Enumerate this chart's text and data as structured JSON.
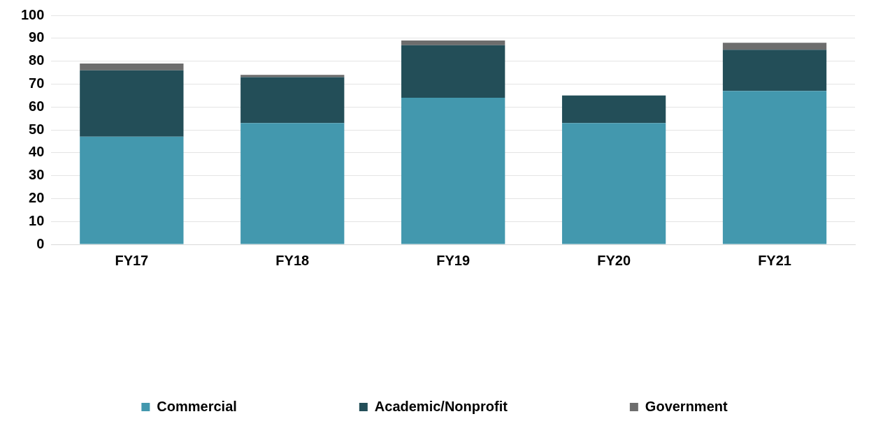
{
  "chart_data": {
    "type": "bar",
    "stacked": true,
    "categories": [
      "FY17",
      "FY18",
      "FY19",
      "FY20",
      "FY21"
    ],
    "series": [
      {
        "name": "Commercial",
        "color": "#4398ae",
        "values": [
          47,
          53,
          64,
          53,
          67
        ]
      },
      {
        "name": "Academic/Nonprofit",
        "color": "#234e58",
        "values": [
          29,
          20,
          23,
          12,
          18
        ]
      },
      {
        "name": "Government",
        "color": "#6d6d6d",
        "values": [
          3,
          1,
          2,
          0,
          3
        ]
      }
    ],
    "ylim": [
      0,
      100
    ],
    "yticks": [
      0,
      10,
      20,
      30,
      40,
      50,
      60,
      70,
      80,
      90,
      100
    ],
    "grid": "y",
    "legend": "bottom"
  }
}
